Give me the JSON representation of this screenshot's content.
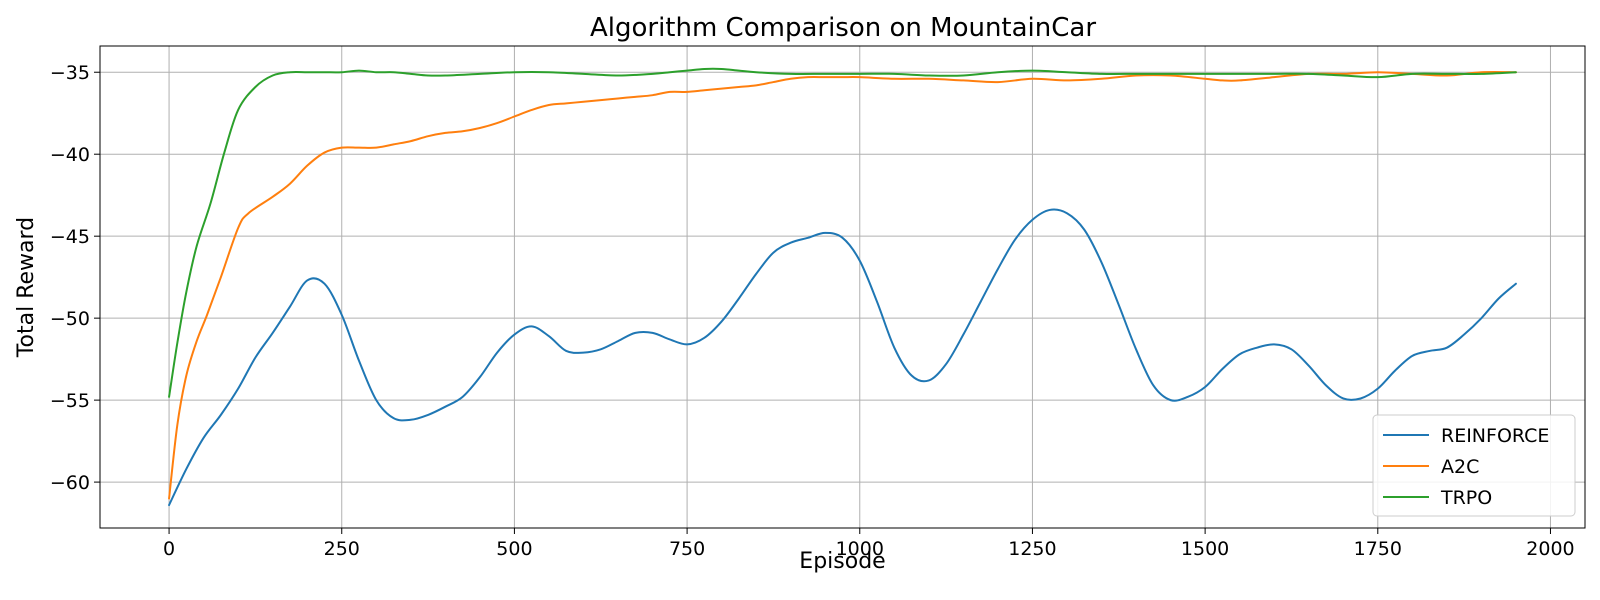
{
  "chart_data": {
    "type": "line",
    "title": "Algorithm Comparison on MountainCar",
    "xlabel": "Episode",
    "ylabel": "Total Reward",
    "xlim": [
      -100,
      2050
    ],
    "ylim": [
      -62.8,
      -33.4
    ],
    "xticks": [
      0,
      250,
      500,
      750,
      1000,
      1250,
      1500,
      1750,
      2000
    ],
    "yticks": [
      -60,
      -55,
      -50,
      -45,
      -40,
      -35
    ],
    "grid": true,
    "legend_position": "bottom-right",
    "series": [
      {
        "name": "REINFORCE",
        "color": "#1f77b4",
        "points": [
          [
            0,
            -61.4
          ],
          [
            25,
            -59.2
          ],
          [
            50,
            -57.3
          ],
          [
            75,
            -55.9
          ],
          [
            100,
            -54.3
          ],
          [
            125,
            -52.4
          ],
          [
            150,
            -50.9
          ],
          [
            175,
            -49.3
          ],
          [
            200,
            -47.7
          ],
          [
            225,
            -47.9
          ],
          [
            250,
            -49.8
          ],
          [
            275,
            -52.6
          ],
          [
            300,
            -55.0
          ],
          [
            325,
            -56.1
          ],
          [
            350,
            -56.2
          ],
          [
            375,
            -55.9
          ],
          [
            400,
            -55.4
          ],
          [
            425,
            -54.8
          ],
          [
            450,
            -53.6
          ],
          [
            475,
            -52.1
          ],
          [
            500,
            -51.0
          ],
          [
            525,
            -50.5
          ],
          [
            550,
            -51.1
          ],
          [
            575,
            -52.0
          ],
          [
            600,
            -52.1
          ],
          [
            625,
            -51.9
          ],
          [
            650,
            -51.4
          ],
          [
            675,
            -50.9
          ],
          [
            700,
            -50.9
          ],
          [
            725,
            -51.3
          ],
          [
            750,
            -51.6
          ],
          [
            775,
            -51.2
          ],
          [
            800,
            -50.2
          ],
          [
            825,
            -48.8
          ],
          [
            850,
            -47.3
          ],
          [
            875,
            -46.0
          ],
          [
            900,
            -45.4
          ],
          [
            925,
            -45.1
          ],
          [
            950,
            -44.8
          ],
          [
            975,
            -45.1
          ],
          [
            1000,
            -46.5
          ],
          [
            1025,
            -49.0
          ],
          [
            1050,
            -51.8
          ],
          [
            1075,
            -53.5
          ],
          [
            1100,
            -53.8
          ],
          [
            1125,
            -52.8
          ],
          [
            1150,
            -51.0
          ],
          [
            1175,
            -49.0
          ],
          [
            1200,
            -47.0
          ],
          [
            1225,
            -45.2
          ],
          [
            1250,
            -44.0
          ],
          [
            1275,
            -43.4
          ],
          [
            1300,
            -43.6
          ],
          [
            1325,
            -44.6
          ],
          [
            1350,
            -46.6
          ],
          [
            1375,
            -49.2
          ],
          [
            1400,
            -51.9
          ],
          [
            1425,
            -54.1
          ],
          [
            1450,
            -55.0
          ],
          [
            1475,
            -54.8
          ],
          [
            1500,
            -54.2
          ],
          [
            1525,
            -53.1
          ],
          [
            1550,
            -52.2
          ],
          [
            1575,
            -51.8
          ],
          [
            1600,
            -51.6
          ],
          [
            1625,
            -51.9
          ],
          [
            1650,
            -52.9
          ],
          [
            1675,
            -54.1
          ],
          [
            1700,
            -54.9
          ],
          [
            1725,
            -54.9
          ],
          [
            1750,
            -54.3
          ],
          [
            1775,
            -53.2
          ],
          [
            1800,
            -52.3
          ],
          [
            1825,
            -52.0
          ],
          [
            1850,
            -51.8
          ],
          [
            1875,
            -51.0
          ],
          [
            1900,
            -50.0
          ],
          [
            1925,
            -48.8
          ],
          [
            1950,
            -47.9
          ]
        ]
      },
      {
        "name": "A2C",
        "color": "#ff7f0e",
        "points": [
          [
            0,
            -61.0
          ],
          [
            12,
            -56.5
          ],
          [
            25,
            -53.5
          ],
          [
            40,
            -51.4
          ],
          [
            55,
            -49.8
          ],
          [
            75,
            -47.5
          ],
          [
            100,
            -44.5
          ],
          [
            115,
            -43.6
          ],
          [
            150,
            -42.6
          ],
          [
            175,
            -41.8
          ],
          [
            200,
            -40.7
          ],
          [
            225,
            -39.9
          ],
          [
            250,
            -39.6
          ],
          [
            275,
            -39.6
          ],
          [
            300,
            -39.6
          ],
          [
            325,
            -39.4
          ],
          [
            350,
            -39.2
          ],
          [
            375,
            -38.9
          ],
          [
            400,
            -38.7
          ],
          [
            425,
            -38.6
          ],
          [
            450,
            -38.4
          ],
          [
            475,
            -38.1
          ],
          [
            500,
            -37.7
          ],
          [
            525,
            -37.3
          ],
          [
            550,
            -37.0
          ],
          [
            575,
            -36.9
          ],
          [
            600,
            -36.8
          ],
          [
            625,
            -36.7
          ],
          [
            650,
            -36.6
          ],
          [
            675,
            -36.5
          ],
          [
            700,
            -36.4
          ],
          [
            725,
            -36.2
          ],
          [
            750,
            -36.2
          ],
          [
            775,
            -36.1
          ],
          [
            800,
            -36.0
          ],
          [
            825,
            -35.9
          ],
          [
            850,
            -35.8
          ],
          [
            875,
            -35.6
          ],
          [
            900,
            -35.4
          ],
          [
            925,
            -35.3
          ],
          [
            950,
            -35.3
          ],
          [
            975,
            -35.3
          ],
          [
            1000,
            -35.3
          ],
          [
            1050,
            -35.4
          ],
          [
            1100,
            -35.4
          ],
          [
            1150,
            -35.5
          ],
          [
            1200,
            -35.6
          ],
          [
            1250,
            -35.4
          ],
          [
            1300,
            -35.5
          ],
          [
            1350,
            -35.4
          ],
          [
            1400,
            -35.2
          ],
          [
            1450,
            -35.2
          ],
          [
            1500,
            -35.4
          ],
          [
            1525,
            -35.5
          ],
          [
            1550,
            -35.5
          ],
          [
            1600,
            -35.3
          ],
          [
            1650,
            -35.1
          ],
          [
            1700,
            -35.1
          ],
          [
            1750,
            -35.0
          ],
          [
            1800,
            -35.1
          ],
          [
            1850,
            -35.2
          ],
          [
            1900,
            -35.0
          ],
          [
            1950,
            -35.0
          ]
        ]
      },
      {
        "name": "TRPO",
        "color": "#2ca02c",
        "points": [
          [
            0,
            -54.8
          ],
          [
            12,
            -51.5
          ],
          [
            25,
            -48.4
          ],
          [
            40,
            -45.6
          ],
          [
            60,
            -43.0
          ],
          [
            80,
            -39.9
          ],
          [
            100,
            -37.3
          ],
          [
            125,
            -35.9
          ],
          [
            150,
            -35.2
          ],
          [
            175,
            -35.0
          ],
          [
            200,
            -35.0
          ],
          [
            225,
            -35.0
          ],
          [
            250,
            -35.0
          ],
          [
            275,
            -34.9
          ],
          [
            300,
            -35.0
          ],
          [
            325,
            -35.0
          ],
          [
            350,
            -35.1
          ],
          [
            375,
            -35.2
          ],
          [
            400,
            -35.2
          ],
          [
            450,
            -35.1
          ],
          [
            500,
            -35.0
          ],
          [
            550,
            -35.0
          ],
          [
            600,
            -35.1
          ],
          [
            650,
            -35.2
          ],
          [
            700,
            -35.1
          ],
          [
            725,
            -35.0
          ],
          [
            750,
            -34.9
          ],
          [
            775,
            -34.8
          ],
          [
            800,
            -34.8
          ],
          [
            825,
            -34.9
          ],
          [
            850,
            -35.0
          ],
          [
            900,
            -35.1
          ],
          [
            950,
            -35.1
          ],
          [
            1000,
            -35.1
          ],
          [
            1050,
            -35.1
          ],
          [
            1100,
            -35.2
          ],
          [
            1150,
            -35.2
          ],
          [
            1200,
            -35.0
          ],
          [
            1250,
            -34.9
          ],
          [
            1300,
            -35.0
          ],
          [
            1350,
            -35.1
          ],
          [
            1400,
            -35.1
          ],
          [
            1450,
            -35.1
          ],
          [
            1500,
            -35.1
          ],
          [
            1550,
            -35.1
          ],
          [
            1600,
            -35.1
          ],
          [
            1650,
            -35.1
          ],
          [
            1700,
            -35.2
          ],
          [
            1750,
            -35.3
          ],
          [
            1800,
            -35.1
          ],
          [
            1850,
            -35.1
          ],
          [
            1900,
            -35.1
          ],
          [
            1950,
            -35.0
          ]
        ]
      }
    ]
  }
}
